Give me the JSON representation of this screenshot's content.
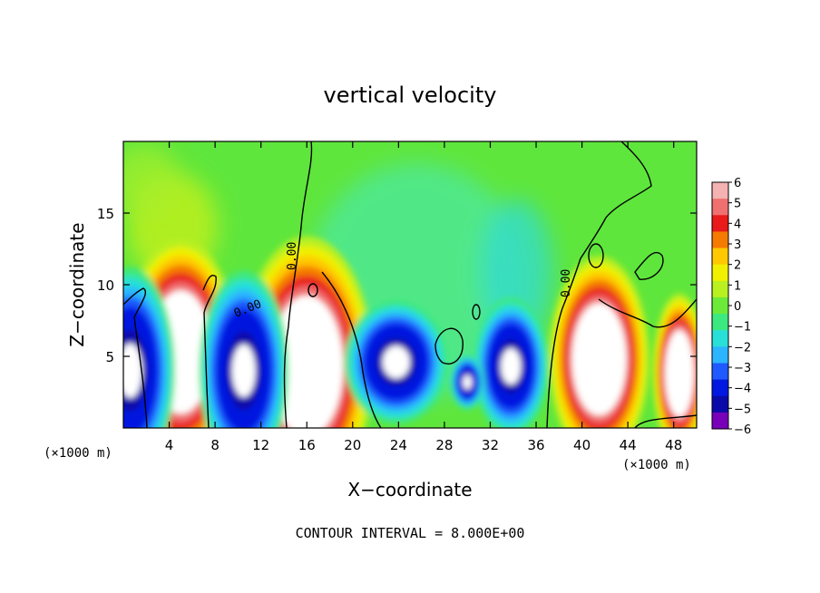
{
  "chart_data": {
    "type": "heatmap",
    "title": "vertical velocity",
    "xlabel": "X−coordinate",
    "ylabel": "Z−coordinate",
    "x_unit_left": "(×1000 m)",
    "x_unit_right": "(×1000 m)",
    "footer": "CONTOUR INTERVAL = 8.000E+00",
    "xlim": [
      0,
      50
    ],
    "ylim": [
      0,
      20
    ],
    "x_ticks": [
      4,
      8,
      12,
      16,
      20,
      24,
      28,
      32,
      36,
      40,
      44,
      48
    ],
    "y_ticks": [
      5,
      10,
      15
    ],
    "colorbar": {
      "ticks": [
        "6",
        "5",
        "4",
        "3",
        "2",
        "1",
        "0",
        "−1",
        "−2",
        "−3",
        "−4",
        "−5",
        "−6"
      ],
      "colors": [
        "#f4b2b2",
        "#f07070",
        "#e81a1a",
        "#f57a00",
        "#ffc800",
        "#f0f000",
        "#b8f020",
        "#6cea3a",
        "#3ce880",
        "#28e0d8",
        "#2cb4ff",
        "#1e5aff",
        "#0018e0",
        "#0a0aa8",
        "#7800b8"
      ]
    },
    "contour_labels": [
      "0.00",
      "0.00",
      "0.00"
    ],
    "updrafts": [
      {
        "x": 5.0,
        "z": 5.3
      },
      {
        "x": 16.0,
        "z": 4.3
      },
      {
        "x": 41.5,
        "z": 4.8
      },
      {
        "x": 48.5,
        "z": 3.8
      }
    ],
    "downdrafts": [
      {
        "x": 0.6,
        "z": 4.0
      },
      {
        "x": 10.5,
        "z": 4.0
      },
      {
        "x": 23.8,
        "z": 4.6
      },
      {
        "x": 33.8,
        "z": 4.3
      },
      {
        "x": 30.0,
        "z": 3.2
      }
    ]
  }
}
